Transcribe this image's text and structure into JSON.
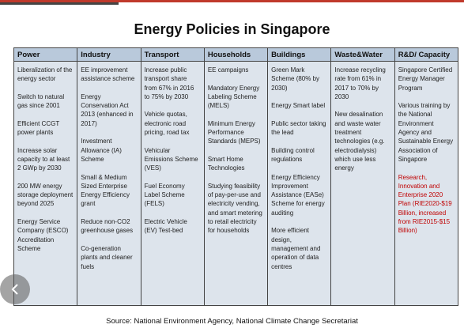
{
  "title": "Energy Policies in Singapore",
  "table": {
    "headers": [
      "Power",
      "Industry",
      "Transport",
      "Households",
      "Buildings",
      "Waste&Water",
      "R&D/ Capacity"
    ],
    "rows": [
      [
        [
          "Liberalization of the energy sector",
          "Switch to natural gas since 2001",
          "Efficient CCGT power plants",
          "Increase solar capacity to at least 2 GWp by 2030",
          "200 MW energy storage deployment beyond 2025",
          "Energy Service Company (ESCO) Accreditation Scheme"
        ],
        [
          "EE improvement assistance scheme",
          "Energy Conservation Act 2013 (enhanced in 2017)",
          "Investment Allowance (IA) Scheme",
          "Small & Medium Sized Enterprise Energy Efficiency grant",
          "Reduce non-CO2 greenhouse gases",
          "Co-generation plants and cleaner fuels"
        ],
        [
          "Increase public transport share from 67% in 2016 to 75% by 2030",
          "Vehicle quotas, electronic road pricing, road tax",
          "Vehicular Emissions Scheme (VES)",
          "Fuel Economy Label Scheme (FELS)",
          "Electric Vehicle (EV) Test-bed"
        ],
        [
          "EE campaigns",
          "Mandatory Energy Labeling Scheme (MELS)",
          "Minimum Energy Performance Standards (MEPS)",
          "Smart Home Technologies",
          "Studying feasibility of pay-per-use and electricity vending, and smart metering to retail electricity for households"
        ],
        [
          "Green Mark Scheme (80% by 2030)",
          "Energy Smart label",
          "Public sector taking the lead",
          "Building control regulations",
          "Energy Efficiency Improvement Assistance (EASe) Scheme for energy auditing",
          "More efficient design, management and operation of data centres"
        ],
        [
          "Increase recycling rate from 61% in 2017 to 70% by 2030",
          "New desalination and waste water treatment technologies (e.g. electrodialysis) which use less energy"
        ],
        [
          "Singapore Certified Energy Manager Program",
          "Various training by the National Environment Agency and Sustainable Energy Association of Singapore",
          "Research, Innovation and Enterprise 2020 Plan (RIE2020-$19 Billion, increased from RIE2015-$15 Billion)"
        ]
      ]
    ]
  },
  "source": "Source: National Environment Agency, National Climate Change Secretariat"
}
